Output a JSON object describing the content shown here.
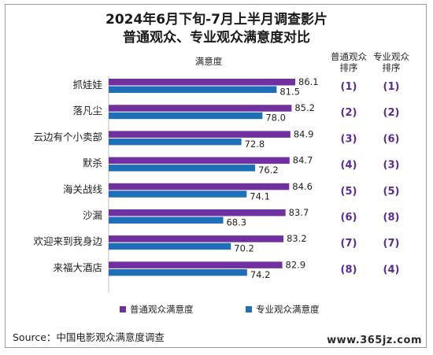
{
  "chart_data": {
    "type": "bar",
    "title": "2024年6月下旬-7月上半月调查影片",
    "subtitle": "普通观众、专业观众满意度对比",
    "axis_header": "满意度",
    "rank_headers": [
      [
        "普通观众",
        "排序"
      ],
      [
        "专业观众",
        "排序"
      ]
    ],
    "categories": [
      "抓娃娃",
      "落凡尘",
      "云边有个小卖部",
      "默杀",
      "海关战线",
      "沙漏",
      "欢迎来到我身边",
      "来福大酒店"
    ],
    "series": [
      {
        "name": "普通观众满意度",
        "values": [
          86.1,
          85.2,
          84.9,
          84.7,
          84.6,
          83.7,
          83.2,
          82.9
        ],
        "color": "#7030a0"
      },
      {
        "name": "专业观众满意度",
        "values": [
          81.5,
          78.0,
          72.8,
          76.2,
          74.1,
          68.3,
          70.2,
          74.2
        ],
        "color": "#1f6fb8"
      }
    ],
    "value_labels": [
      [
        "86.1",
        "85.2",
        "84.9",
        "84.7",
        "84.6",
        "83.7",
        "83.2",
        "82.9"
      ],
      [
        "81.5",
        "78.0",
        "72.8",
        "76.2",
        "74.1",
        "68.3",
        "70.2",
        "74.2"
      ]
    ],
    "ranks_general": [
      "(1)",
      "(2)",
      "(3)",
      "(4)",
      "(5)",
      "(6)",
      "(7)",
      "(8)"
    ],
    "ranks_professional": [
      "(1)",
      "(2)",
      "(6)",
      "(3)",
      "(5)",
      "(8)",
      "(7)",
      "(4)"
    ],
    "xlim": [
      40,
      90
    ],
    "legend_position": "bottom"
  },
  "source": "Source：中国电影观众满意度调查",
  "watermark": "www.365jz.com"
}
